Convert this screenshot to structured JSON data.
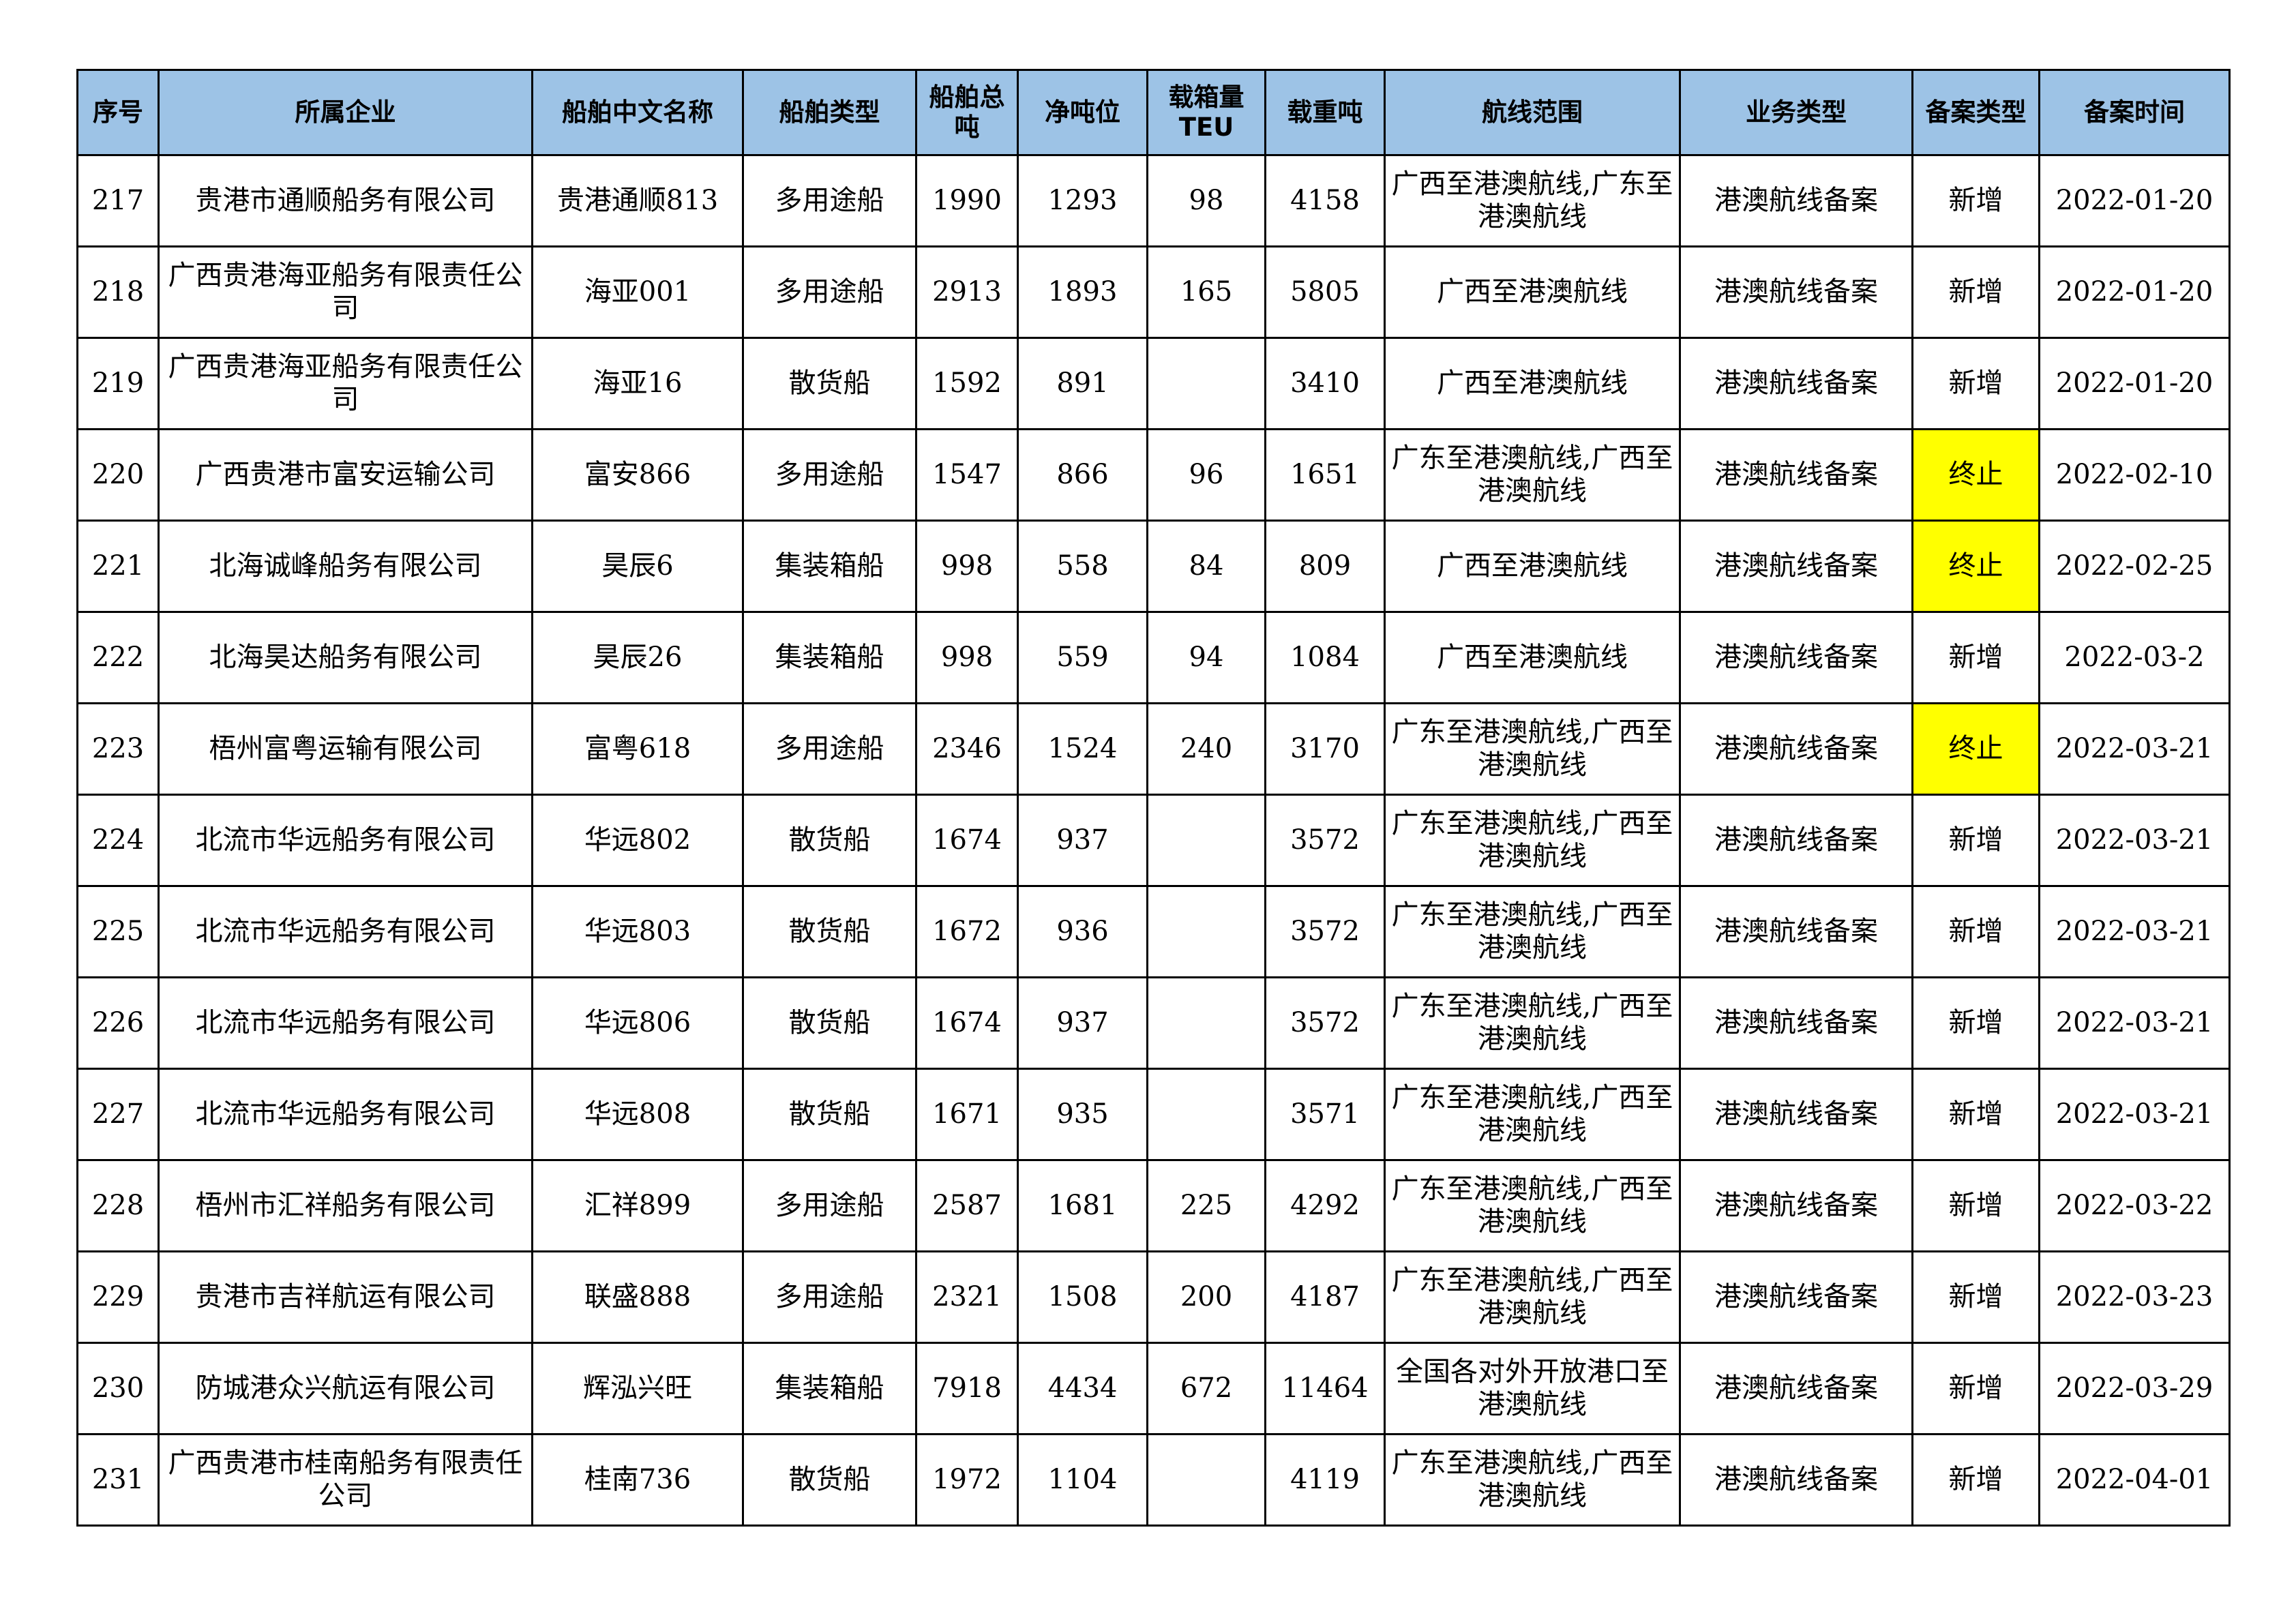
{
  "table": {
    "header": [
      "序号",
      "所属企业",
      "船舶中文名称",
      "船舶类型",
      "船舶总吨",
      "净吨位",
      "载箱量TEU",
      "载重吨",
      "航线范围",
      "业务类型",
      "备案类型",
      "备案时间"
    ],
    "rows": [
      [
        "217",
        "贵港市通顺船务有限公司",
        "贵港通顺813",
        "多用途船",
        "1990",
        "1293",
        "98",
        "4158",
        "广西至港澳航线,广东至港澳航线",
        "港澳航线备案",
        "新增",
        "2022-01-20"
      ],
      [
        "218",
        "广西贵港海亚船务有限责任公司",
        "海亚001",
        "多用途船",
        "2913",
        "1893",
        "165",
        "5805",
        "广西至港澳航线",
        "港澳航线备案",
        "新增",
        "2022-01-20"
      ],
      [
        "219",
        "广西贵港海亚船务有限责任公司",
        "海亚16",
        "散货船",
        "1592",
        "891",
        null,
        "3410",
        "广西至港澳航线",
        "港澳航线备案",
        "新增",
        "2022-01-20"
      ],
      [
        "220",
        "广西贵港市富安运输公司",
        "富安866",
        "多用途船",
        "1547",
        "866",
        "96",
        "1651",
        "广东至港澳航线,广西至港澳航线",
        "港澳航线备案",
        "终止",
        "2022-02-10"
      ],
      [
        "221",
        "北海诚峰船务有限公司",
        "昊辰6",
        "集装箱船",
        "998",
        "558",
        "84",
        "809",
        "广西至港澳航线",
        "港澳航线备案",
        "终止",
        "2022-02-25"
      ],
      [
        "222",
        "北海昊达船务有限公司",
        "昊辰26",
        "集装箱船",
        "998",
        "559",
        "94",
        "1084",
        "广西至港澳航线",
        "港澳航线备案",
        "新增",
        "2022-03-2"
      ],
      [
        "223",
        "梧州富粤运输有限公司",
        "富粤618",
        "多用途船",
        "2346",
        "1524",
        "240",
        "3170",
        "广东至港澳航线,广西至港澳航线",
        "港澳航线备案",
        "终止",
        "2022-03-21"
      ],
      [
        "224",
        "北流市华远船务有限公司",
        "华远802",
        "散货船",
        "1674",
        "937",
        null,
        "3572",
        "广东至港澳航线,广西至港澳航线",
        "港澳航线备案",
        "新增",
        "2022-03-21"
      ],
      [
        "225",
        "北流市华远船务有限公司",
        "华远803",
        "散货船",
        "1672",
        "936",
        null,
        "3572",
        "广东至港澳航线,广西至港澳航线",
        "港澳航线备案",
        "新增",
        "2022-03-21"
      ],
      [
        "226",
        "北流市华远船务有限公司",
        "华远806",
        "散货船",
        "1674",
        "937",
        null,
        "3572",
        "广东至港澳航线,广西至港澳航线",
        "港澳航线备案",
        "新增",
        "2022-03-21"
      ],
      [
        "227",
        "北流市华远船务有限公司",
        "华远808",
        "散货船",
        "1671",
        "935",
        null,
        "3571",
        "广东至港澳航线,广西至港澳航线",
        "港澳航线备案",
        "新增",
        "2022-03-21"
      ],
      [
        "228",
        "梧州市汇祥船务有限公司",
        "汇祥899",
        "多用途船",
        "2587",
        "1681",
        "225",
        "4292",
        "广东至港澳航线,广西至港澳航线",
        "港澳航线备案",
        "新增",
        "2022-03-22"
      ],
      [
        "229",
        "贵港市吉祥航运有限公司",
        "联盛888",
        "多用途船",
        "2321",
        "1508",
        "200",
        "4187",
        "广东至港澳航线,广西至港澳航线",
        "港澳航线备案",
        "新增",
        "2022-03-23"
      ],
      [
        "230",
        "防城港众兴航运有限公司",
        "辉泓兴旺",
        "集装箱船",
        "7918",
        "4434",
        "672",
        "11464",
        "全国各对外开放港口至港澳航线",
        "港澳航线备案",
        "新增",
        "2022-03-29"
      ],
      [
        "231",
        "广西贵港市桂南船务有限责任公司",
        "桂南736",
        "散货船",
        "1972",
        "1104",
        null,
        "4119",
        "广东至港澳航线,广西至港澳航线",
        "港澳航线备案",
        "新增",
        "2022-04-01"
      ]
    ],
    "highlight": {
      "column": 10,
      "rows": [
        3,
        4,
        6
      ],
      "color": "#ffff00"
    }
  }
}
